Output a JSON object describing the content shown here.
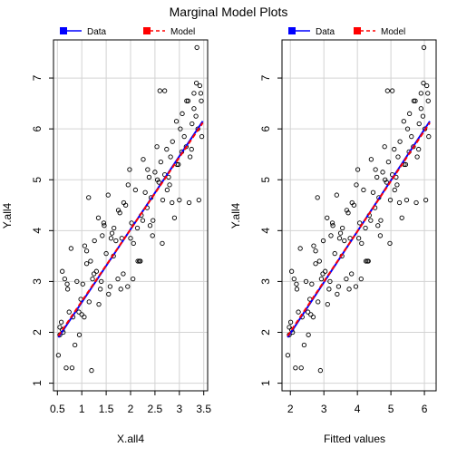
{
  "figure": {
    "title": "Marginal Model Plots",
    "legend": {
      "data_label": "Data",
      "model_label": "Model",
      "data_color": "#0000ff",
      "model_color": "#ff0000"
    },
    "point_color": "#000000",
    "grid_color": "#d3d3d3"
  },
  "chart_data": [
    {
      "type": "scatter",
      "title": "",
      "xlabel": "X.all4",
      "ylabel": "Y.all4",
      "xlim": [
        0.42,
        3.58
      ],
      "ylim": [
        0.85,
        7.75
      ],
      "xticks": [
        0.5,
        1.0,
        1.5,
        2.0,
        2.5,
        3.0,
        3.5
      ],
      "xtick_labels": [
        "0.5",
        "1",
        "1.5",
        "2",
        "2.5",
        "3",
        "3.5"
      ],
      "yticks": [
        1,
        2,
        3,
        4,
        5,
        6,
        7
      ],
      "ytick_labels": [
        "1",
        "2",
        "3",
        "4",
        "5",
        "6",
        "7"
      ],
      "grid": true,
      "legend_position": "top-left",
      "series": [
        {
          "name": "Data",
          "x": [
            0.52,
            0.55,
            0.55,
            0.58,
            0.6,
            0.62,
            0.65,
            0.68,
            0.71,
            0.74,
            0.78,
            0.82,
            0.86,
            0.9,
            0.94,
            0.98,
            1.02,
            1.06,
            1.1,
            1.14,
            1.18,
            1.22,
            1.26,
            1.3,
            1.34,
            1.38,
            1.42,
            1.46,
            1.5,
            1.54,
            1.58,
            1.62,
            1.66,
            1.7,
            1.74,
            1.78,
            1.82,
            1.86,
            1.9,
            1.94,
            1.98,
            2.02,
            2.06,
            2.1,
            2.14,
            2.18,
            2.22,
            2.26,
            2.3,
            2.34,
            2.38,
            2.42,
            2.46,
            2.5,
            2.54,
            2.58,
            2.62,
            2.66,
            2.7,
            2.74,
            2.78,
            2.82,
            2.86,
            2.9,
            2.94,
            2.98,
            3.02,
            3.06,
            3.1,
            3.14,
            3.18,
            3.22,
            3.26,
            3.3,
            3.34,
            3.38,
            3.42,
            3.46,
            0.6,
            0.7,
            0.95,
            1.05,
            1.15,
            1.25,
            1.35,
            1.45,
            1.55,
            1.65,
            1.75,
            1.85,
            1.95,
            2.05,
            2.15,
            2.25,
            2.35,
            2.45,
            2.55,
            2.65,
            2.75,
            2.85,
            2.95,
            3.05,
            3.15,
            3.25,
            3.35,
            3.45,
            0.8,
            1.0,
            1.2,
            1.4,
            1.6,
            1.8,
            2.0,
            2.2,
            2.4,
            2.6,
            2.8,
            3.0,
            3.2,
            3.4,
            3.36,
            3.44,
            1.1,
            2.7,
            3.3
          ],
          "y": [
            1.55,
            2.1,
            1.95,
            2.2,
            3.2,
            2.0,
            3.05,
            1.3,
            2.85,
            2.4,
            3.65,
            2.3,
            1.75,
            3.0,
            2.4,
            2.65,
            2.95,
            3.7,
            3.35,
            4.65,
            3.4,
            3.05,
            3.8,
            3.2,
            4.25,
            2.85,
            3.9,
            4.1,
            3.55,
            4.7,
            2.9,
            3.95,
            4.05,
            3.8,
            3.05,
            4.35,
            3.85,
            4.55,
            4.5,
            2.9,
            5.2,
            4.15,
            3.75,
            4.8,
            4.05,
            3.4,
            4.3,
            5.4,
            4.75,
            4.45,
            5.05,
            4.65,
            4.2,
            5.15,
            5.65,
            4.95,
            5.35,
            4.6,
            5.1,
            5.6,
            5.05,
            5.45,
            5.75,
            4.25,
            6.15,
            5.3,
            6.0,
            6.3,
            5.85,
            5.65,
            6.55,
            5.45,
            6.1,
            6.7,
            6.25,
            6.0,
            6.85,
            5.85,
            2.05,
            2.95,
            1.95,
            2.3,
            2.6,
            3.15,
            2.55,
            4.15,
            2.75,
            3.5,
            4.4,
            3.15,
            4.9,
            3.05,
            3.4,
            4.2,
            5.2,
            3.9,
            5.0,
            3.75,
            4.8,
            4.55,
            5.3,
            5.55,
            6.55,
            5.6,
            6.9,
            6.55,
            1.3,
            2.35,
            1.25,
            3.0,
            3.85,
            2.85,
            3.85,
            3.4,
            4.1,
            6.75,
            4.9,
            4.6,
            4.55,
            4.6,
            7.6,
            6.7,
            3.6,
            6.75,
            6.4
          ]
        }
      ],
      "data_line": {
        "name": "Data",
        "x": [
          0.52,
          3.48
        ],
        "y": [
          1.9,
          6.15
        ]
      },
      "model_line": {
        "name": "Model",
        "x": [
          0.52,
          3.48
        ],
        "y": [
          1.93,
          6.12
        ]
      }
    },
    {
      "type": "scatter",
      "title": "",
      "xlabel": "Fitted values",
      "ylabel": "Y.all4",
      "xlim": [
        1.75,
        6.35
      ],
      "ylim": [
        0.85,
        7.75
      ],
      "xticks": [
        2,
        3,
        4,
        5,
        6
      ],
      "xtick_labels": [
        "2",
        "3",
        "4",
        "5",
        "6"
      ],
      "yticks": [
        1,
        2,
        3,
        4,
        5,
        6,
        7
      ],
      "ytick_labels": [
        "1",
        "2",
        "3",
        "4",
        "5",
        "6",
        "7"
      ],
      "grid": true,
      "legend_position": "top-left",
      "x_from_panel1": {
        "intercept": 1.18,
        "slope": 1.43
      },
      "data_line": {
        "name": "Data",
        "x": [
          1.92,
          6.16
        ],
        "y": [
          1.9,
          6.15
        ]
      },
      "model_line": {
        "name": "Model",
        "x": [
          1.92,
          6.16
        ],
        "y": [
          1.93,
          6.12
        ]
      }
    }
  ]
}
